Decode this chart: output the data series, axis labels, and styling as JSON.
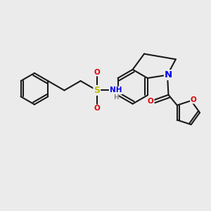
{
  "bg_color": "#ebebeb",
  "bond_color": "#1a1a1a",
  "lw": 1.5,
  "atom_colors": {
    "N": "#0000ee",
    "O": "#dd0000",
    "S": "#bbbb00",
    "H": "#888888"
  },
  "fs": 7.5
}
